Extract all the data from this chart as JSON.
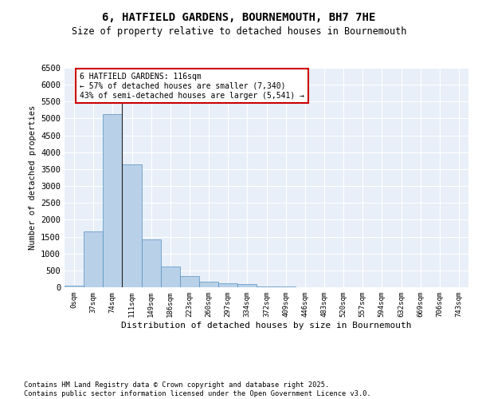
{
  "title": "6, HATFIELD GARDENS, BOURNEMOUTH, BH7 7HE",
  "subtitle": "Size of property relative to detached houses in Bournemouth",
  "xlabel": "Distribution of detached houses by size in Bournemouth",
  "ylabel": "Number of detached properties",
  "bar_color": "#b8d0e8",
  "bar_edge_color": "#6aа0c8",
  "background_color": "#e8eff8",
  "grid_color": "#ffffff",
  "categories": [
    "0sqm",
    "37sqm",
    "74sqm",
    "111sqm",
    "149sqm",
    "186sqm",
    "223sqm",
    "260sqm",
    "297sqm",
    "334sqm",
    "372sqm",
    "409sqm",
    "446sqm",
    "483sqm",
    "520sqm",
    "557sqm",
    "594sqm",
    "632sqm",
    "669sqm",
    "706sqm",
    "743sqm"
  ],
  "values": [
    50,
    1650,
    5130,
    3650,
    1430,
    610,
    320,
    155,
    115,
    90,
    35,
    20,
    0,
    0,
    0,
    0,
    0,
    0,
    0,
    0,
    0
  ],
  "property_line_x": 2.5,
  "annotation_text": "6 HATFIELD GARDENS: 116sqm\n← 57% of detached houses are smaller (7,340)\n43% of semi-detached houses are larger (5,541) →",
  "annotation_box_color": "#ffffff",
  "annotation_box_edge": "#cc0000",
  "ylim": [
    0,
    6500
  ],
  "yticks": [
    0,
    500,
    1000,
    1500,
    2000,
    2500,
    3000,
    3500,
    4000,
    4500,
    5000,
    5500,
    6000,
    6500
  ],
  "footnote1": "Contains HM Land Registry data © Crown copyright and database right 2025.",
  "footnote2": "Contains public sector information licensed under the Open Government Licence v3.0."
}
